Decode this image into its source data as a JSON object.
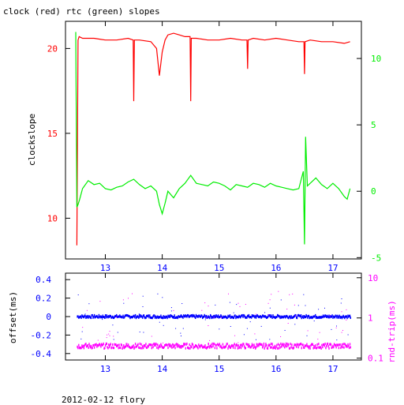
{
  "title": "clock (red) rtc (green) slopes",
  "footer": "2012-02-12 flory",
  "colors": {
    "red": "#ff0000",
    "green": "#00ee00",
    "blue": "#0000ff",
    "magenta": "#ff00ff",
    "axis": "#000000"
  },
  "chart_data": [
    {
      "type": "line",
      "ylabel": "clockslope",
      "y2label": "",
      "xticks": [
        13,
        14,
        15,
        16,
        17
      ],
      "xlim": [
        12.3,
        17.5
      ],
      "ylim": [
        7.6,
        21.6
      ],
      "yticks": [
        10,
        15,
        20
      ],
      "y2lim": [
        -5.1,
        12.8
      ],
      "y2ticks": [
        -5,
        0,
        5,
        10
      ],
      "series": [
        {
          "name": "clock",
          "color": "red",
          "axis": "left",
          "x": [
            12.5,
            12.52,
            12.54,
            12.6,
            12.8,
            13.0,
            13.2,
            13.4,
            13.49,
            13.5,
            13.51,
            13.6,
            13.8,
            13.9,
            13.95,
            14.0,
            14.05,
            14.1,
            14.2,
            14.3,
            14.4,
            14.49,
            14.5,
            14.51,
            14.6,
            14.8,
            15.0,
            15.2,
            15.4,
            15.49,
            15.5,
            15.51,
            15.6,
            15.8,
            16.0,
            16.2,
            16.4,
            16.49,
            16.5,
            16.51,
            16.6,
            16.8,
            17.0,
            17.2,
            17.3
          ],
          "y": [
            8.4,
            20.5,
            20.7,
            20.6,
            20.6,
            20.5,
            20.5,
            20.6,
            20.5,
            16.9,
            20.5,
            20.5,
            20.4,
            20.0,
            18.4,
            19.8,
            20.5,
            20.8,
            20.9,
            20.8,
            20.7,
            20.7,
            16.9,
            20.6,
            20.6,
            20.5,
            20.5,
            20.6,
            20.5,
            20.5,
            18.8,
            20.5,
            20.6,
            20.5,
            20.6,
            20.5,
            20.4,
            20.4,
            18.5,
            20.4,
            20.5,
            20.4,
            20.4,
            20.3,
            20.4
          ]
        },
        {
          "name": "rtc",
          "color": "green",
          "axis": "right",
          "x": [
            12.48,
            12.5,
            12.52,
            12.55,
            12.6,
            12.7,
            12.8,
            12.9,
            13.0,
            13.1,
            13.2,
            13.3,
            13.4,
            13.5,
            13.6,
            13.7,
            13.8,
            13.9,
            13.95,
            14.0,
            14.05,
            14.1,
            14.2,
            14.3,
            14.4,
            14.5,
            14.6,
            14.7,
            14.8,
            14.9,
            15.0,
            15.1,
            15.2,
            15.3,
            15.4,
            15.5,
            15.6,
            15.7,
            15.8,
            15.9,
            16.0,
            16.1,
            16.2,
            16.3,
            16.4,
            16.48,
            16.5,
            16.52,
            16.55,
            16.6,
            16.7,
            16.8,
            16.9,
            17.0,
            17.1,
            17.2,
            17.25,
            17.3
          ],
          "y": [
            12.0,
            -1.2,
            -1.0,
            -0.6,
            0.2,
            0.8,
            0.5,
            0.6,
            0.2,
            0.1,
            0.3,
            0.4,
            0.7,
            0.9,
            0.5,
            0.2,
            0.4,
            0.0,
            -1.0,
            -1.7,
            -0.9,
            0.0,
            -0.5,
            0.2,
            0.6,
            1.2,
            0.6,
            0.5,
            0.4,
            0.7,
            0.6,
            0.4,
            0.1,
            0.5,
            0.4,
            0.3,
            0.6,
            0.5,
            0.3,
            0.6,
            0.4,
            0.3,
            0.2,
            0.1,
            0.2,
            1.5,
            -4.0,
            4.1,
            0.4,
            0.6,
            1.0,
            0.5,
            0.2,
            0.6,
            0.2,
            -0.4,
            -0.6,
            0.2
          ]
        }
      ]
    },
    {
      "type": "scatter",
      "ylabel": "offset(ms)",
      "y2label": "rnd-trip(ms)",
      "y2scale": "log",
      "xticks": [
        13,
        14,
        15,
        16,
        17
      ],
      "xlim": [
        12.3,
        17.5
      ],
      "ylim": [
        -0.47,
        0.47
      ],
      "yticks": [
        -0.4,
        -0.2,
        0,
        0.2,
        0.4
      ],
      "y2lim": [
        0.09,
        13
      ],
      "y2ticks": [
        0.1,
        1,
        10
      ],
      "series": [
        {
          "name": "offset",
          "color": "blue",
          "axis": "left",
          "x_range": [
            12.5,
            17.3
          ],
          "level": 0.0
        },
        {
          "name": "rnd-trip",
          "color": "magenta",
          "axis": "right",
          "x_range": [
            12.5,
            17.3
          ],
          "level": 0.2
        }
      ]
    }
  ]
}
